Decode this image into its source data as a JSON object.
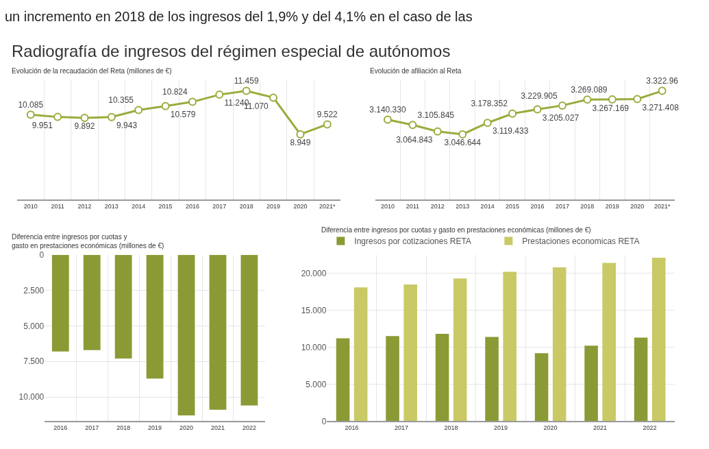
{
  "chart_data": [
    {
      "type": "line",
      "title": "Radiografía de ingresos del régimen especial de autónomos",
      "subtitle": "Evolución de la recaudación del Reta (millones de €)",
      "annotations": [
        "un incremento en 2018 de los ingresos del 1,9% y del 4,1% en el caso de las"
      ],
      "categories": [
        "2010",
        "2011",
        "2012",
        "2013",
        "2014",
        "2015",
        "2016",
        "2017",
        "2018",
        "2019",
        "2020",
        "2021*"
      ],
      "series": [
        {
          "color": "#9aab3c",
          "values": [
            10085,
            9951,
            9892,
            9943,
            10355,
            10579,
            10824,
            11240,
            11459,
            11070,
            8949,
            9522
          ],
          "value_labels": [
            "10.085",
            "9.951",
            "9.892",
            "9.943",
            "10.355",
            "10.579",
            "10.824",
            "11.240",
            "11.459",
            "11.070",
            "8.949",
            "9.522"
          ]
        }
      ],
      "tick_labels": "x",
      "grid": "x",
      "marker": "circle",
      "line_style": "solid"
    },
    {
      "type": "line",
      "title": "Evolución de afiliación al Reta",
      "categories": [
        "2010",
        "2011",
        "2012",
        "2013",
        "2014",
        "2015",
        "2016",
        "2017",
        "2018",
        "2019",
        "2020",
        "2021*"
      ],
      "series": [
        {
          "color": "#9aab3c",
          "values": [
            3140330,
            3105845,
            3064843,
            3046644,
            3119433,
            3178352,
            3205027,
            3229905,
            3267169,
            3269089,
            3271408,
            3322960
          ],
          "value_labels": [
            "3.140.330",
            "3.105.845",
            "3.064.843",
            "3.046.644",
            "3.119.433",
            "3.178.352",
            "3.205.027",
            "3.229.905",
            "3.267.169",
            "3.269.089",
            "3.271.408",
            "3.322.96"
          ]
        }
      ],
      "tick_labels": "x",
      "grid": "x",
      "marker": "circle",
      "line_style": "solid"
    },
    {
      "type": "bar",
      "title": "Diferencia entre ingresos por cuotas y\ngasto en prestaciones económicas (millones de €)",
      "categories": [
        "2016",
        "2017",
        "2018",
        "2019",
        "2020",
        "2021",
        "2022"
      ],
      "series": [
        {
          "color": "#8c9a35",
          "values": [
            6800,
            6700,
            7300,
            8700,
            11300,
            10900,
            10600
          ]
        }
      ],
      "ylim": [
        11700,
        0
      ],
      "yticks": [
        0,
        {
          "value": 2500,
          "label": "2.500"
        },
        {
          "value": 5000,
          "label": "5.000"
        },
        {
          "value": 7500,
          "label": "7.500"
        },
        {
          "value": 10000,
          "label": "10.000"
        }
      ],
      "grid": true
    },
    {
      "type": "bar",
      "title": "Diferencia entre ingresos por cuotas y gasto en prestaciones económicas (millones de €)",
      "categories": [
        "2016",
        "2017",
        "2018",
        "2019",
        "2020",
        "2021",
        "2022"
      ],
      "series": [
        {
          "name": "Ingresos por cotizaciones RETA",
          "color": "#8c9a35",
          "values": [
            11200,
            11500,
            11800,
            11400,
            9200,
            10200,
            11300
          ]
        },
        {
          "name": "Prestaciones economicas RETA",
          "color": "#c9c966",
          "values": [
            18100,
            18500,
            19300,
            20200,
            20800,
            21400,
            22100
          ]
        }
      ],
      "ylim": [
        0,
        22500
      ],
      "yticks": [
        0,
        {
          "value": 5000,
          "label": "5.000"
        },
        {
          "value": 10000,
          "label": "10.000"
        },
        {
          "value": 15000,
          "label": "15.000"
        },
        {
          "value": 20000,
          "label": "20.000"
        }
      ],
      "grid": true,
      "legend": "top left"
    }
  ]
}
